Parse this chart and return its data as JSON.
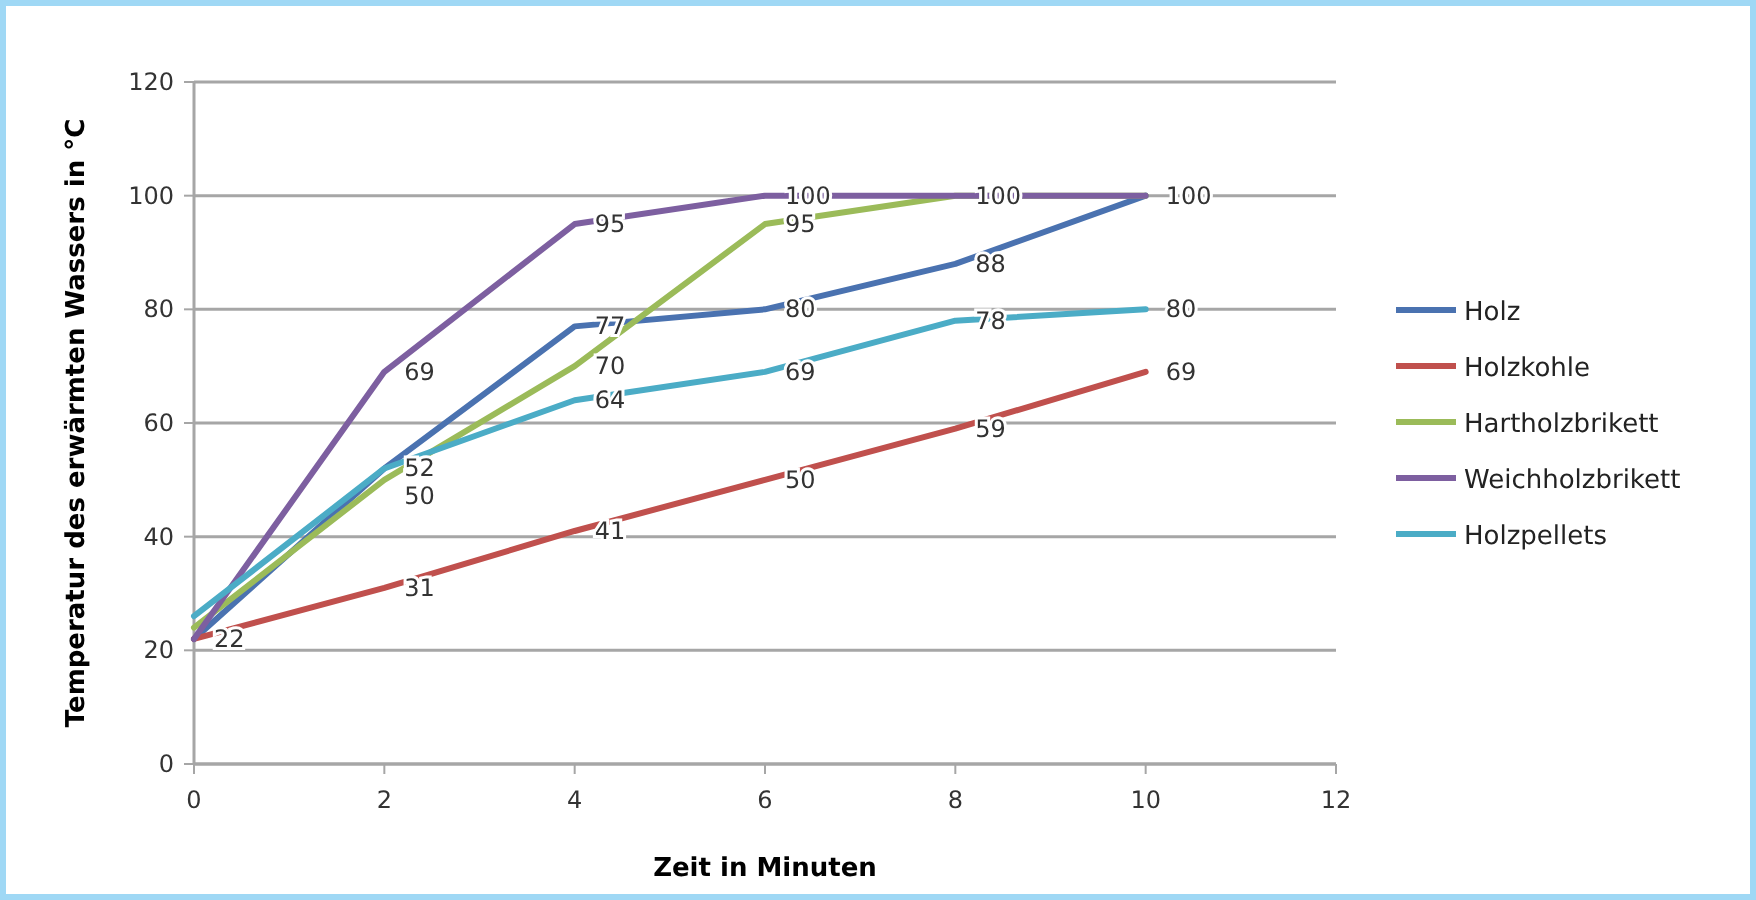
{
  "chart_data": {
    "type": "line",
    "xlabel": "Zeit in Minuten",
    "ylabel": "Temperatur des erwärmten Wassers in °C",
    "x": [
      0,
      2,
      4,
      6,
      8,
      10
    ],
    "xlim": [
      0,
      12
    ],
    "xticks": [
      0,
      2,
      4,
      6,
      8,
      10,
      12
    ],
    "ylim": [
      0,
      120
    ],
    "yticks": [
      0,
      20,
      40,
      60,
      80,
      100,
      120
    ],
    "grid": "y",
    "legend": "right",
    "marker": "none",
    "series": [
      {
        "name": "Holz",
        "color": "#4a72b0",
        "values": [
          22,
          52,
          77,
          80,
          88,
          100
        ],
        "value_labels": [
          null,
          "52",
          "77",
          "80",
          "88",
          "100"
        ]
      },
      {
        "name": "Holzkohle",
        "color": "#c0504d",
        "values": [
          22,
          31,
          41,
          50,
          59,
          69
        ],
        "value_labels": [
          "22",
          "31",
          "41",
          "50",
          "59",
          "69"
        ]
      },
      {
        "name": "Hartholzbrikett",
        "color": "#9bbb59",
        "values": [
          24,
          50,
          70,
          95,
          100,
          100
        ],
        "value_labels": [
          null,
          "50",
          "70",
          "95",
          null,
          null
        ]
      },
      {
        "name": "Weichholzbrikett",
        "color": "#7d5fa0",
        "values": [
          22,
          69,
          95,
          100,
          100,
          100
        ],
        "value_labels": [
          null,
          "69",
          "95",
          "100",
          "100",
          null
        ]
      },
      {
        "name": "Holzpellets",
        "color": "#4bacc6",
        "values": [
          26,
          52,
          64,
          69,
          78,
          80
        ],
        "value_labels": [
          null,
          null,
          "64",
          "69",
          "78",
          "80"
        ]
      }
    ]
  }
}
